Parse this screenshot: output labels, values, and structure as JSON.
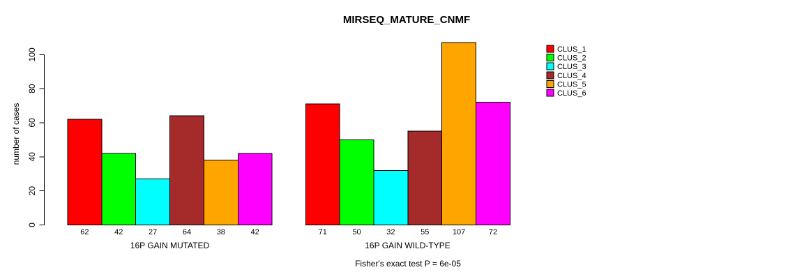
{
  "chart_data": {
    "type": "bar",
    "title": "MIRSEQ_MATURE_CNMF",
    "ylabel": "number of cases",
    "xlabel": "",
    "yticks": [
      0,
      20,
      40,
      60,
      80,
      100
    ],
    "ylim": [
      0,
      107
    ],
    "grid": false,
    "legend_position": "top-right",
    "categories": [
      "16P GAIN MUTATED",
      "16P GAIN WILD-TYPE"
    ],
    "series": [
      {
        "name": "CLUS_1",
        "color": "#FF0000",
        "values": [
          62,
          71
        ]
      },
      {
        "name": "CLUS_2",
        "color": "#00FF00",
        "values": [
          42,
          50
        ]
      },
      {
        "name": "CLUS_3",
        "color": "#00FFFF",
        "values": [
          27,
          32
        ]
      },
      {
        "name": "CLUS_4",
        "color": "#A52A2A",
        "values": [
          64,
          55
        ]
      },
      {
        "name": "CLUS_5",
        "color": "#FFA500",
        "values": [
          38,
          107
        ]
      },
      {
        "name": "CLUS_6",
        "color": "#FF00FF",
        "values": [
          42,
          72
        ]
      }
    ],
    "bar_value_labels": true,
    "caption": "Fisher's exact test P = 6e-05",
    "colors": {
      "background": "#FFFFFF",
      "axis": "#000000",
      "text": "#000000"
    }
  }
}
